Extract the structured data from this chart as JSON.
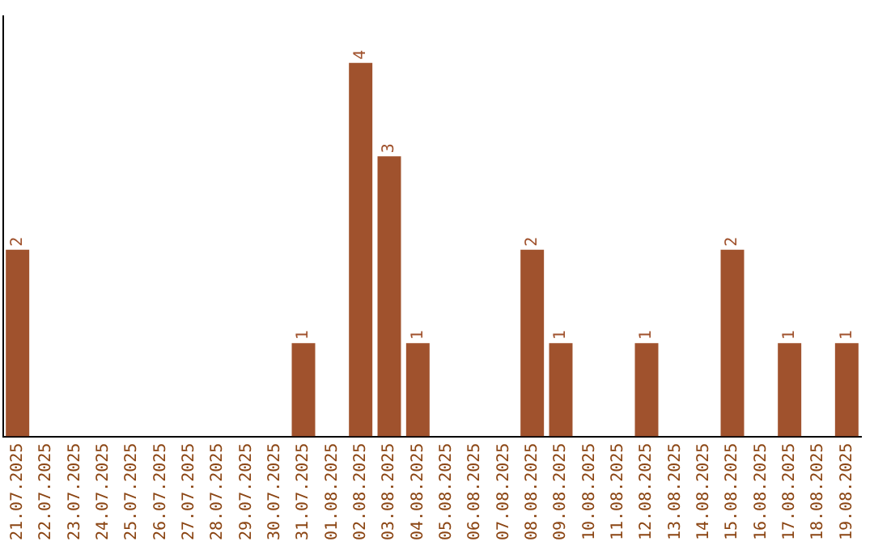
{
  "chart_data": {
    "type": "bar",
    "categories": [
      "21.07.2025",
      "22.07.2025",
      "23.07.2025",
      "24.07.2025",
      "25.07.2025",
      "26.07.2025",
      "27.07.2025",
      "28.07.2025",
      "29.07.2025",
      "30.07.2025",
      "31.07.2025",
      "01.08.2025",
      "02.08.2025",
      "03.08.2025",
      "04.08.2025",
      "05.08.2025",
      "06.08.2025",
      "07.08.2025",
      "08.08.2025",
      "09.08.2025",
      "10.08.2025",
      "11.08.2025",
      "12.08.2025",
      "13.08.2025",
      "14.08.2025",
      "15.08.2025",
      "16.08.2025",
      "17.08.2025",
      "18.08.2025",
      "19.08.2025"
    ],
    "values": [
      2,
      0,
      0,
      0,
      0,
      0,
      0,
      0,
      0,
      0,
      1,
      0,
      4,
      3,
      1,
      0,
      0,
      0,
      2,
      1,
      0,
      0,
      1,
      0,
      0,
      2,
      0,
      1,
      0,
      1
    ],
    "value_labels": [
      "2",
      null,
      null,
      null,
      null,
      null,
      null,
      null,
      null,
      null,
      "1",
      null,
      "4",
      "3",
      "1",
      null,
      null,
      null,
      "2",
      "1",
      null,
      null,
      "1",
      null,
      null,
      "2",
      null,
      "1",
      null,
      "1"
    ],
    "color": "#a0522d",
    "tick_labels": "x",
    "grid": false,
    "legend": false
  }
}
